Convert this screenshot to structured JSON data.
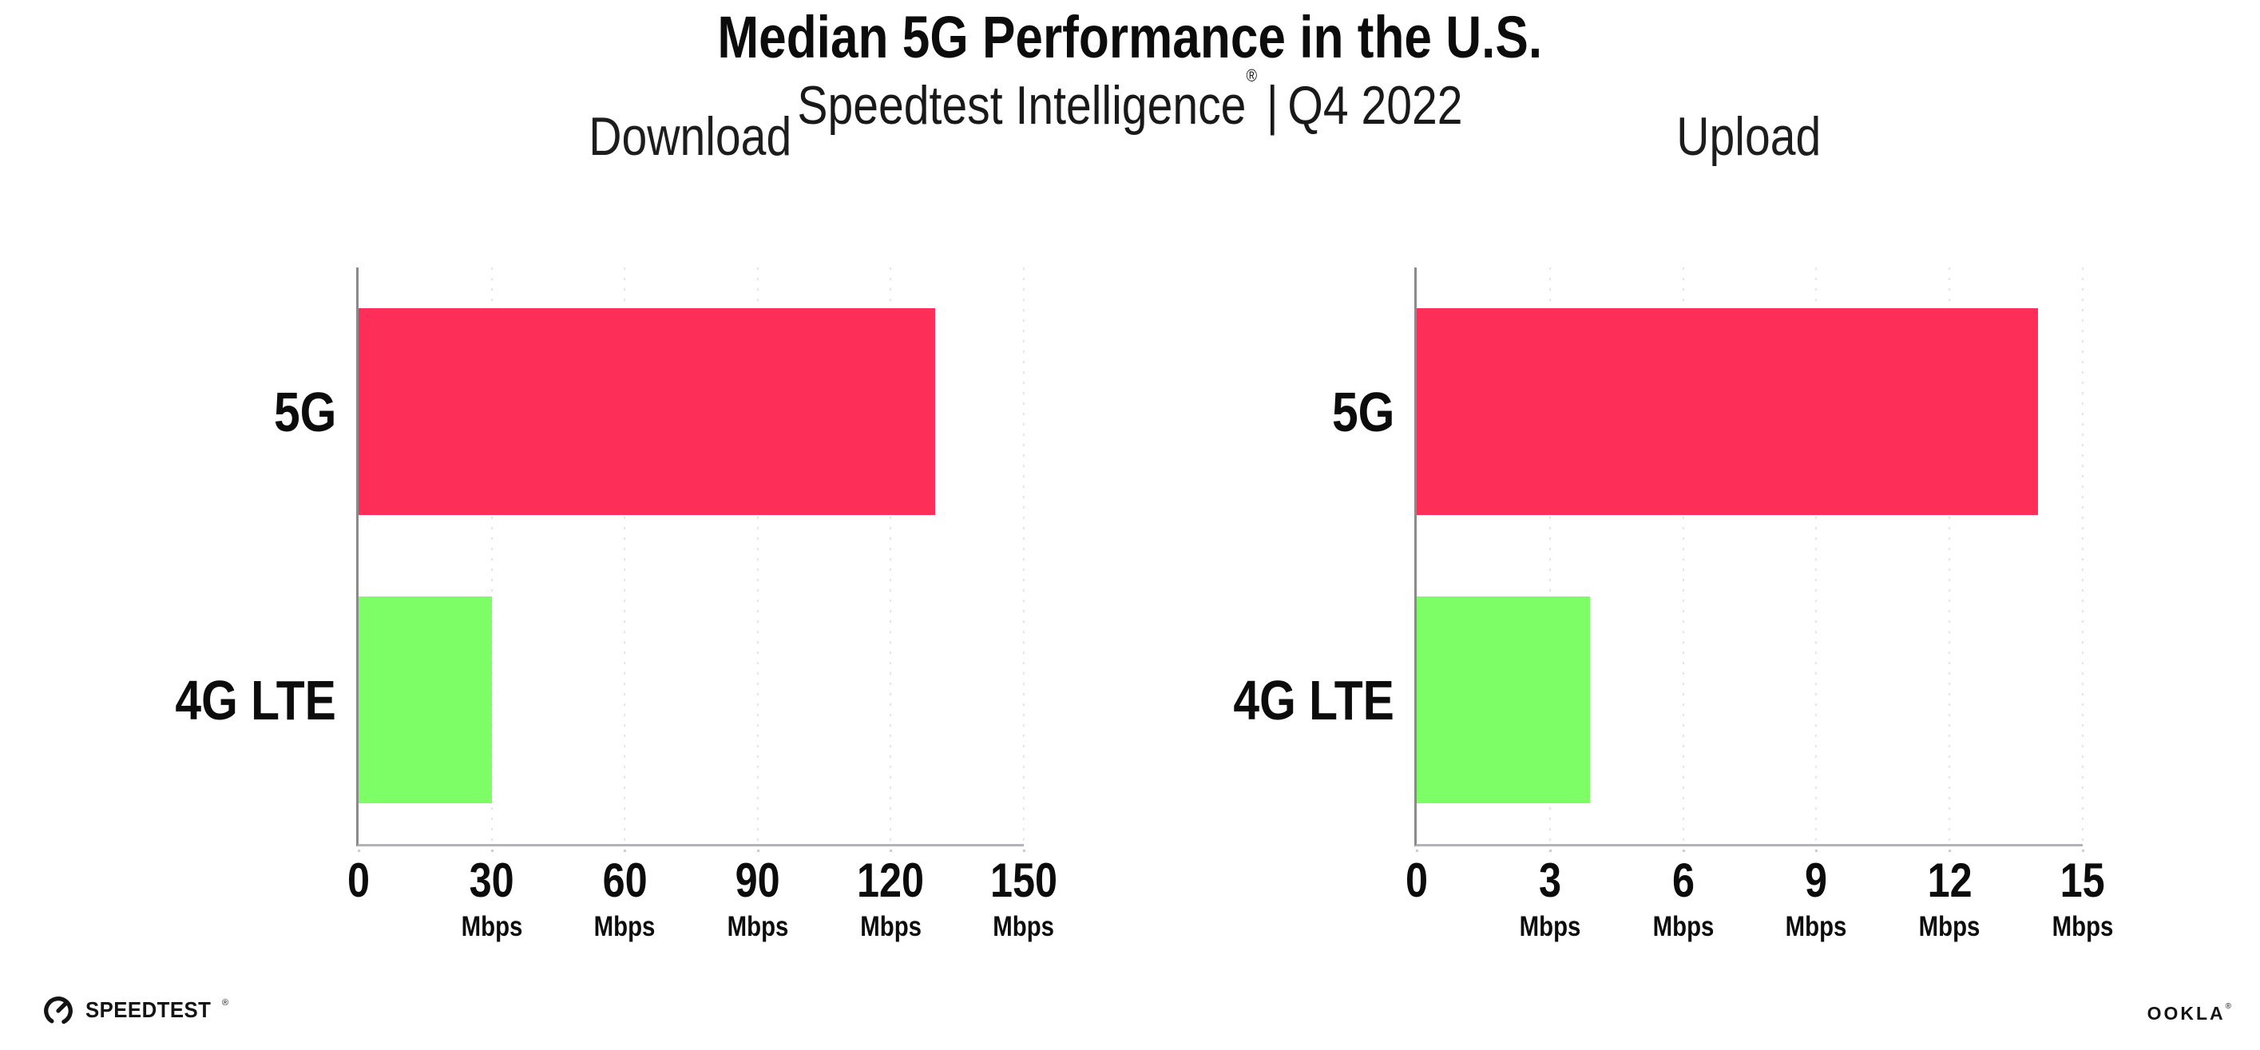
{
  "header": {
    "title": "Median 5G Performance in the U.S.",
    "subtitle_brand": "Speedtest Intelligence",
    "subtitle_reg": "®",
    "subtitle_sep": "|",
    "subtitle_period": "Q4 2022"
  },
  "colors": {
    "bar_5g": "#fd2e58",
    "bar_4g": "#7dfd66",
    "axis_left": "#8a8a8a",
    "axis_bottom": "#b2b2b8",
    "gridline": "#e2e5ee",
    "text": "#111111"
  },
  "chart_data": [
    {
      "type": "bar",
      "orientation": "horizontal",
      "title": "Download",
      "categories": [
        "5G",
        "4G LTE"
      ],
      "values": [
        130,
        30
      ],
      "bar_colors": [
        "#fd2e58",
        "#7dfd66"
      ],
      "xlim": [
        0,
        150
      ],
      "xticks": [
        0,
        30,
        60,
        90,
        120,
        150
      ],
      "tick_unit": "Mbps",
      "xlabel": "",
      "ylabel": "",
      "grid": "vertical-dotted",
      "legend": "none"
    },
    {
      "type": "bar",
      "orientation": "horizontal",
      "title": "Upload",
      "categories": [
        "5G",
        "4G LTE"
      ],
      "values": [
        14,
        3.9
      ],
      "bar_colors": [
        "#fd2e58",
        "#7dfd66"
      ],
      "xlim": [
        0,
        15
      ],
      "xticks": [
        0,
        3,
        6,
        9,
        12,
        15
      ],
      "tick_unit": "Mbps",
      "xlabel": "",
      "ylabel": "",
      "grid": "vertical-dotted",
      "legend": "none"
    }
  ],
  "footer": {
    "speedtest_wordmark": "SPEEDTEST",
    "speedtest_reg": "®",
    "ookla_wordmark": "OOKLA",
    "ookla_reg": "®"
  }
}
